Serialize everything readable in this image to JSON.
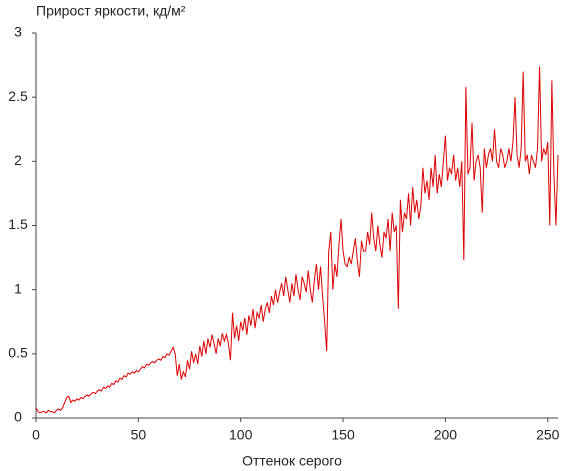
{
  "chart_data": {
    "type": "line",
    "title": "Прирост яркости, кд/м²",
    "xlabel": "Оттенок серого",
    "color": "#dd0000",
    "grid": false,
    "xlim": [
      0,
      255
    ],
    "xticks": [
      0,
      50,
      100,
      150,
      200,
      250
    ],
    "ylim": [
      0,
      3
    ],
    "yticks": [
      0,
      0.5,
      1,
      1.5,
      2,
      2.5,
      3
    ],
    "x": [
      0,
      1,
      2,
      3,
      4,
      5,
      6,
      7,
      8,
      9,
      10,
      11,
      12,
      13,
      14,
      15,
      16,
      17,
      18,
      19,
      20,
      21,
      22,
      23,
      24,
      25,
      26,
      27,
      28,
      29,
      30,
      31,
      32,
      33,
      34,
      35,
      36,
      37,
      38,
      39,
      40,
      41,
      42,
      43,
      44,
      45,
      46,
      47,
      48,
      49,
      50,
      51,
      52,
      53,
      54,
      55,
      56,
      57,
      58,
      59,
      60,
      61,
      62,
      63,
      64,
      65,
      66,
      67,
      68,
      69,
      70,
      71,
      72,
      73,
      74,
      75,
      76,
      77,
      78,
      79,
      80,
      81,
      82,
      83,
      84,
      85,
      86,
      87,
      88,
      89,
      90,
      91,
      92,
      93,
      94,
      95,
      96,
      97,
      98,
      99,
      100,
      101,
      102,
      103,
      104,
      105,
      106,
      107,
      108,
      109,
      110,
      111,
      112,
      113,
      114,
      115,
      116,
      117,
      118,
      119,
      120,
      121,
      122,
      123,
      124,
      125,
      126,
      127,
      128,
      129,
      130,
      131,
      132,
      133,
      134,
      135,
      136,
      137,
      138,
      139,
      140,
      141,
      142,
      143,
      144,
      145,
      146,
      147,
      148,
      149,
      150,
      151,
      152,
      153,
      154,
      155,
      156,
      157,
      158,
      159,
      160,
      161,
      162,
      163,
      164,
      165,
      166,
      167,
      168,
      169,
      170,
      171,
      172,
      173,
      174,
      175,
      176,
      177,
      178,
      179,
      180,
      181,
      182,
      183,
      184,
      185,
      186,
      187,
      188,
      189,
      190,
      191,
      192,
      193,
      194,
      195,
      196,
      197,
      198,
      199,
      200,
      201,
      202,
      203,
      204,
      205,
      206,
      207,
      208,
      209,
      210,
      211,
      212,
      213,
      214,
      215,
      216,
      217,
      218,
      219,
      220,
      221,
      222,
      223,
      224,
      225,
      226,
      227,
      228,
      229,
      230,
      231,
      232,
      233,
      234,
      235,
      236,
      237,
      238,
      239,
      240,
      241,
      242,
      243,
      244,
      245,
      246,
      247,
      248,
      249,
      250,
      251,
      252,
      253,
      254,
      255
    ],
    "values": [
      0.08,
      0.05,
      0.04,
      0.05,
      0.05,
      0.04,
      0.06,
      0.05,
      0.05,
      0.04,
      0.06,
      0.07,
      0.06,
      0.08,
      0.12,
      0.16,
      0.17,
      0.12,
      0.14,
      0.13,
      0.15,
      0.14,
      0.16,
      0.15,
      0.17,
      0.18,
      0.17,
      0.19,
      0.2,
      0.19,
      0.21,
      0.22,
      0.21,
      0.24,
      0.23,
      0.25,
      0.24,
      0.27,
      0.26,
      0.29,
      0.28,
      0.31,
      0.3,
      0.33,
      0.32,
      0.35,
      0.34,
      0.36,
      0.35,
      0.37,
      0.36,
      0.38,
      0.4,
      0.39,
      0.42,
      0.41,
      0.43,
      0.44,
      0.43,
      0.45,
      0.46,
      0.45,
      0.48,
      0.47,
      0.5,
      0.49,
      0.52,
      0.55,
      0.5,
      0.33,
      0.42,
      0.3,
      0.36,
      0.32,
      0.45,
      0.38,
      0.52,
      0.43,
      0.5,
      0.42,
      0.56,
      0.48,
      0.6,
      0.5,
      0.62,
      0.55,
      0.65,
      0.58,
      0.5,
      0.62,
      0.56,
      0.66,
      0.6,
      0.65,
      0.58,
      0.45,
      0.82,
      0.62,
      0.72,
      0.6,
      0.75,
      0.68,
      0.78,
      0.65,
      0.8,
      0.72,
      0.85,
      0.7,
      0.82,
      0.78,
      0.88,
      0.75,
      0.85,
      0.9,
      0.82,
      0.95,
      0.88,
      1.0,
      0.9,
      0.98,
      1.05,
      0.95,
      1.1,
      1.0,
      0.9,
      1.05,
      0.95,
      1.12,
      1.0,
      0.92,
      1.1,
      1.05,
      0.98,
      1.15,
      1.0,
      0.9,
      1.08,
      1.2,
      1.0,
      1.18,
      0.95,
      0.75,
      0.52,
      1.3,
      1.45,
      1.0,
      1.2,
      1.1,
      1.35,
      1.55,
      1.3,
      1.2,
      1.18,
      1.25,
      1.2,
      1.3,
      1.4,
      1.22,
      1.1,
      1.38,
      1.3,
      1.3,
      1.45,
      1.35,
      1.6,
      1.4,
      1.3,
      1.5,
      1.35,
      1.25,
      1.45,
      1.4,
      1.55,
      1.3,
      1.6,
      1.45,
      1.5,
      0.85,
      1.7,
      1.45,
      1.6,
      1.55,
      1.75,
      1.5,
      1.8,
      1.6,
      1.7,
      1.55,
      1.65,
      1.95,
      1.75,
      1.85,
      1.7,
      1.95,
      1.8,
      2.05,
      1.75,
      1.9,
      1.8,
      2.0,
      2.2,
      1.85,
      1.95,
      1.9,
      2.05,
      1.85,
      1.95,
      1.8,
      2.0,
      1.23,
      2.58,
      1.9,
      1.95,
      2.3,
      1.85,
      2.0,
      2.05,
      1.95,
      1.6,
      2.1,
      1.95,
      2.05,
      2.1,
      2.0,
      2.25,
      2.0,
      1.95,
      2.1,
      2.05,
      1.95,
      2.0,
      2.1,
      2.0,
      2.15,
      2.5,
      2.05,
      1.95,
      2.1,
      2.7,
      2.0,
      2.05,
      1.9,
      2.05,
      2.0,
      1.95,
      2.1,
      2.74,
      2.0,
      2.1,
      2.05,
      2.15,
      1.5,
      2.63,
      1.9,
      1.5,
      2.05
    ]
  }
}
